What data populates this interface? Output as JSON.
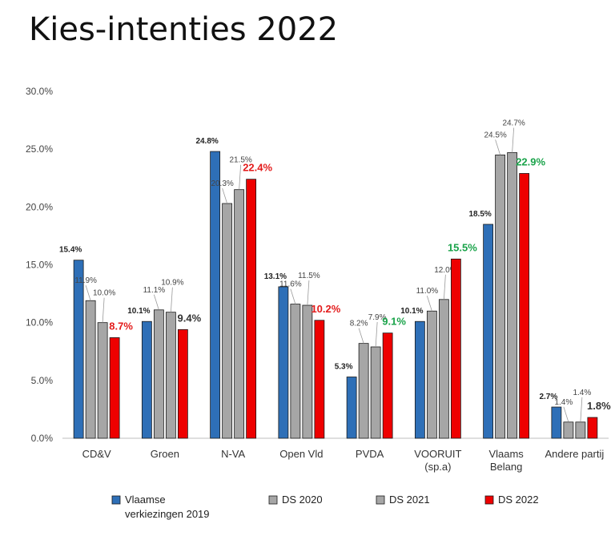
{
  "title": "Kies-intenties 2022",
  "chart_data": {
    "type": "bar",
    "title": "Kies-intenties 2022",
    "ylim": [
      0,
      30
    ],
    "yticks": [
      "0.0%",
      "5.0%",
      "10.0%",
      "15.0%",
      "20.0%",
      "25.0%",
      "30.0%"
    ],
    "grid": false,
    "legend_position": "bottom",
    "categories": [
      [
        "CD&V"
      ],
      [
        "Groen"
      ],
      [
        "N-VA"
      ],
      [
        "Open Vld"
      ],
      [
        "PVDA"
      ],
      [
        "VOORUIT",
        "(sp.a)"
      ],
      [
        "Vlaams",
        "Belang"
      ],
      [
        "Andere partij"
      ]
    ],
    "series": [
      {
        "name": [
          "Vlaamse",
          "verkiezingen 2019"
        ],
        "color": "#2e6fb7",
        "values": [
          15.4,
          10.1,
          24.8,
          13.1,
          5.3,
          10.1,
          18.5,
          2.7
        ],
        "labels": [
          "15.4%",
          "10.1%",
          "24.8%",
          "13.1%",
          "5.3%",
          "10.1%",
          "18.5%",
          "2.7%"
        ]
      },
      {
        "name": [
          "DS 2020"
        ],
        "color": "#a6a6a6",
        "values": [
          11.9,
          11.1,
          20.3,
          11.6,
          8.2,
          11.0,
          24.5,
          1.4
        ],
        "labels": [
          "11.9%",
          "11.1%",
          "20.3%",
          "11.6%",
          "8.2%",
          "11.0%",
          "24.5%",
          "1.4%"
        ]
      },
      {
        "name": [
          "DS 2021"
        ],
        "color": "#a6a6a6",
        "values": [
          10.0,
          10.9,
          21.5,
          11.5,
          7.9,
          12.0,
          24.7,
          1.4
        ],
        "labels": [
          "10.0%",
          "10.9%",
          "21.5%",
          "11.5%",
          "7.9%",
          "12.0%",
          "24.7%",
          "1.4%"
        ]
      },
      {
        "name": [
          "DS 2022"
        ],
        "color": "#ee0000",
        "values": [
          8.7,
          9.4,
          22.4,
          10.2,
          9.1,
          15.5,
          22.9,
          1.8
        ],
        "labels": [
          "8.7%",
          "9.4%",
          "22.4%",
          "10.2%",
          "9.1%",
          "15.5%",
          "22.9%",
          "1.8%"
        ],
        "label_colors": [
          "#e31b1b",
          "#333333",
          "#e31b1b",
          "#e31b1b",
          "#1aa34a",
          "#1aa34a",
          "#1aa34a",
          "#333333"
        ]
      }
    ]
  }
}
